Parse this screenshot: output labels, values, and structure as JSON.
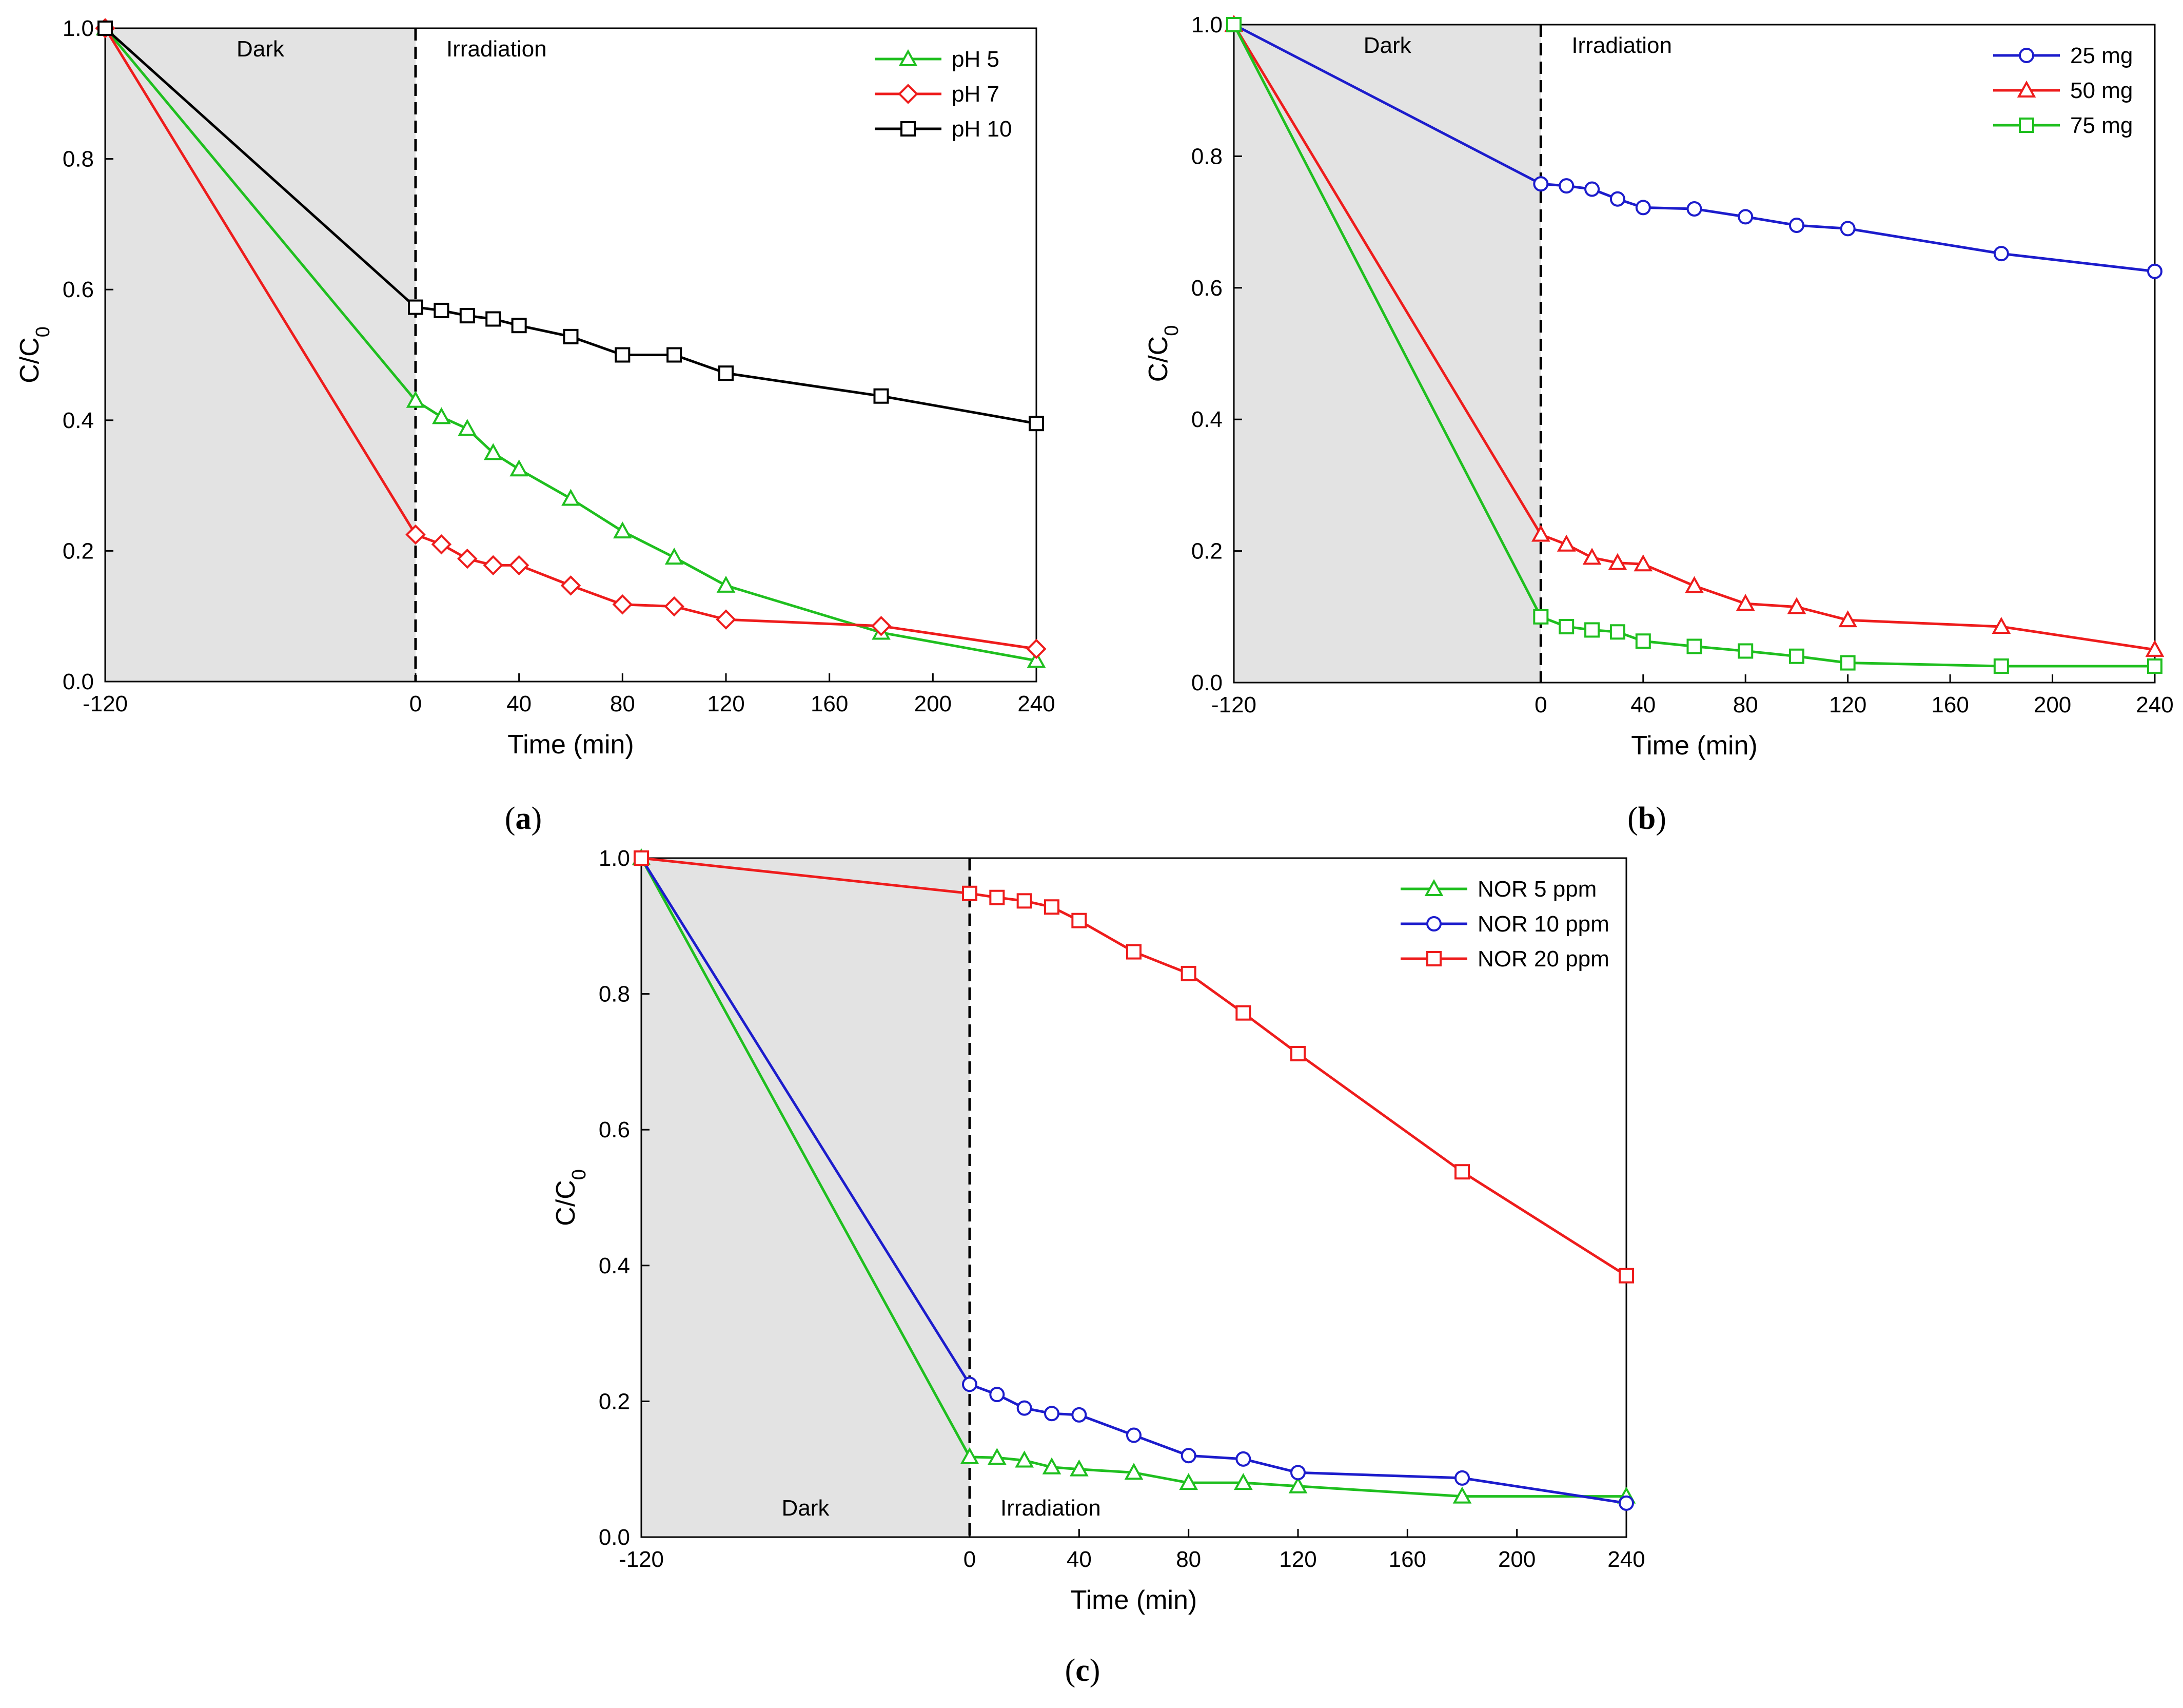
{
  "chart_data": [
    {
      "type": "line",
      "panel": "a",
      "caption": "a",
      "xlabel": "Time (min)",
      "ylabel": "C/C",
      "ylabel_sub": "0",
      "xlim": [
        -120,
        240
      ],
      "ylim": [
        0.0,
        1.0
      ],
      "xticks": [
        -120,
        0,
        40,
        80,
        120,
        160,
        200,
        240
      ],
      "xtick_labels": [
        "-120",
        "0",
        "40",
        "80",
        "120",
        "160",
        "200",
        "240"
      ],
      "yticks": [
        0.0,
        0.2,
        0.4,
        0.6,
        0.8,
        1.0
      ],
      "ytick_labels": [
        "0.0",
        "0.2",
        "0.4",
        "0.6",
        "0.8",
        "1.0"
      ],
      "dark_region": [
        -120,
        0
      ],
      "dark_label": "Dark",
      "irradiation_label": "Irradiation",
      "label_position": "top",
      "legend_position": "top-right",
      "grid": false,
      "series": [
        {
          "name": "pH 5",
          "color": "#1fbf1f",
          "marker": "triangle",
          "x": [
            -120,
            0,
            10,
            20,
            30,
            40,
            60,
            80,
            100,
            120,
            180,
            240
          ],
          "y": [
            1.0,
            0.43,
            0.405,
            0.387,
            0.35,
            0.325,
            0.28,
            0.23,
            0.19,
            0.147,
            0.075,
            0.032
          ]
        },
        {
          "name": "pH 7",
          "color": "#ee1c1c",
          "marker": "diamond",
          "x": [
            -120,
            0,
            10,
            20,
            30,
            40,
            60,
            80,
            100,
            120,
            180,
            240
          ],
          "y": [
            1.0,
            0.225,
            0.21,
            0.188,
            0.178,
            0.178,
            0.147,
            0.118,
            0.115,
            0.095,
            0.085,
            0.05
          ]
        },
        {
          "name": "pH 10",
          "color": "#000000",
          "marker": "square",
          "x": [
            -120,
            0,
            10,
            20,
            30,
            40,
            60,
            80,
            100,
            120,
            180,
            240
          ],
          "y": [
            1.0,
            0.573,
            0.568,
            0.56,
            0.555,
            0.545,
            0.528,
            0.5,
            0.5,
            0.472,
            0.437,
            0.395
          ]
        }
      ]
    },
    {
      "type": "line",
      "panel": "b",
      "caption": "b",
      "xlabel": "Time (min)",
      "ylabel": "C/C",
      "ylabel_sub": "0",
      "xlim": [
        -120,
        240
      ],
      "ylim": [
        0.0,
        1.0
      ],
      "xticks": [
        -120,
        0,
        40,
        80,
        120,
        160,
        200,
        240
      ],
      "xtick_labels": [
        "-120",
        "0",
        "40",
        "80",
        "120",
        "160",
        "200",
        "240"
      ],
      "yticks": [
        0.0,
        0.2,
        0.4,
        0.6,
        0.8,
        1.0
      ],
      "ytick_labels": [
        "0.0",
        "0.2",
        "0.4",
        "0.6",
        "0.8",
        "1.0"
      ],
      "dark_region": [
        -120,
        0
      ],
      "dark_label": "Dark",
      "irradiation_label": "Irradiation",
      "label_position": "top",
      "legend_position": "top-right",
      "grid": false,
      "series": [
        {
          "name": "25 mg",
          "color": "#1c1ccc",
          "marker": "circle",
          "x": [
            -120,
            0,
            10,
            20,
            30,
            40,
            60,
            80,
            100,
            120,
            180,
            240
          ],
          "y": [
            1.0,
            0.758,
            0.755,
            0.75,
            0.735,
            0.722,
            0.72,
            0.708,
            0.695,
            0.69,
            0.652,
            0.625
          ]
        },
        {
          "name": "50 mg",
          "color": "#ee1c1c",
          "marker": "triangle",
          "x": [
            -120,
            0,
            10,
            20,
            30,
            40,
            60,
            80,
            100,
            120,
            180,
            240
          ],
          "y": [
            1.0,
            0.225,
            0.21,
            0.19,
            0.182,
            0.18,
            0.147,
            0.12,
            0.115,
            0.095,
            0.085,
            0.05
          ]
        },
        {
          "name": "75 mg",
          "color": "#1fbf1f",
          "marker": "square",
          "x": [
            -120,
            0,
            10,
            20,
            30,
            40,
            60,
            80,
            100,
            120,
            180,
            240
          ],
          "y": [
            1.0,
            0.1,
            0.085,
            0.08,
            0.077,
            0.063,
            0.055,
            0.048,
            0.04,
            0.03,
            0.025,
            0.025
          ]
        }
      ]
    },
    {
      "type": "line",
      "panel": "c",
      "caption": "c",
      "xlabel": "Time (min)",
      "ylabel": "C/C",
      "ylabel_sub": "0",
      "xlim": [
        -120,
        240
      ],
      "ylim": [
        0.0,
        1.0
      ],
      "xticks": [
        -120,
        0,
        40,
        80,
        120,
        160,
        200,
        240
      ],
      "xtick_labels": [
        "-120",
        "0",
        "40",
        "80",
        "120",
        "160",
        "200",
        "240"
      ],
      "yticks": [
        0.0,
        0.2,
        0.4,
        0.6,
        0.8,
        1.0
      ],
      "ytick_labels": [
        "0.0",
        "0.2",
        "0.4",
        "0.6",
        "0.8",
        "1.0"
      ],
      "dark_region": [
        -120,
        0
      ],
      "dark_label": "Dark",
      "irradiation_label": "Irradiation",
      "label_position": "bottom",
      "legend_position": "top-right",
      "grid": false,
      "series": [
        {
          "name": "NOR 5 ppm",
          "color": "#1fbf1f",
          "marker": "triangle",
          "x": [
            -120,
            0,
            10,
            20,
            30,
            40,
            60,
            80,
            100,
            120,
            180,
            240
          ],
          "y": [
            1.0,
            0.118,
            0.117,
            0.113,
            0.103,
            0.1,
            0.095,
            0.08,
            0.08,
            0.075,
            0.06,
            0.06
          ]
        },
        {
          "name": "NOR 10 ppm",
          "color": "#1c1ccc",
          "marker": "circle",
          "x": [
            -120,
            0,
            10,
            20,
            30,
            40,
            60,
            80,
            100,
            120,
            180,
            240
          ],
          "y": [
            1.0,
            0.225,
            0.21,
            0.19,
            0.182,
            0.18,
            0.15,
            0.12,
            0.115,
            0.095,
            0.087,
            0.05
          ]
        },
        {
          "name": "NOR 20 ppm",
          "color": "#ee1c1c",
          "marker": "square",
          "x": [
            -120,
            0,
            10,
            20,
            30,
            40,
            60,
            80,
            100,
            120,
            180,
            240
          ],
          "y": [
            1.0,
            0.948,
            0.942,
            0.937,
            0.928,
            0.908,
            0.862,
            0.83,
            0.772,
            0.712,
            0.538,
            0.385
          ]
        }
      ]
    }
  ]
}
